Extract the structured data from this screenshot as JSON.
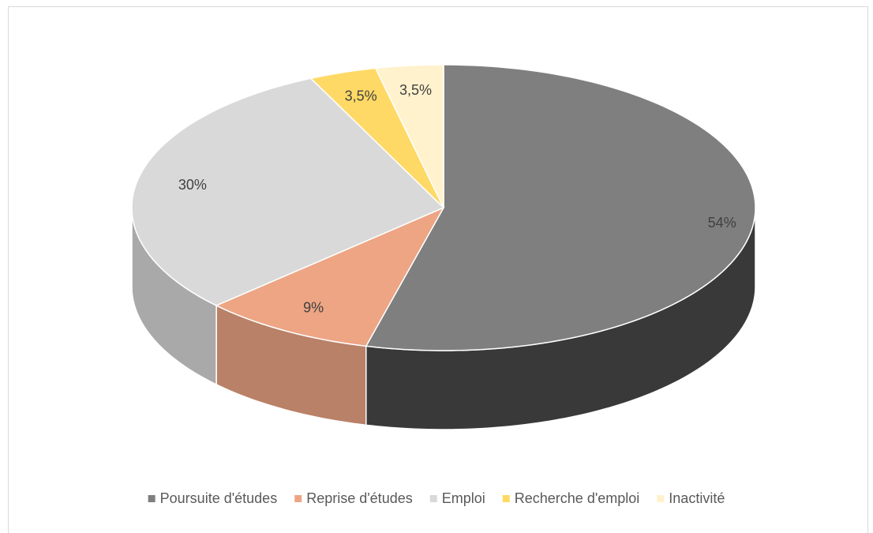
{
  "chart_data": {
    "type": "pie3d",
    "categories": [
      "Poursuite d'études",
      "Reprise d'études",
      "Emploi",
      "Recherche d'emploi",
      "Inactivité"
    ],
    "values": [
      54,
      9,
      30,
      3.5,
      3.5
    ],
    "value_labels": [
      "54%",
      "9%",
      "30%",
      "3,5%",
      "3,5%"
    ],
    "colors": [
      "#7f7f7f",
      "#eda584",
      "#d9d9d9",
      "#ffd966",
      "#fff2cc"
    ],
    "legend": "bottom"
  }
}
